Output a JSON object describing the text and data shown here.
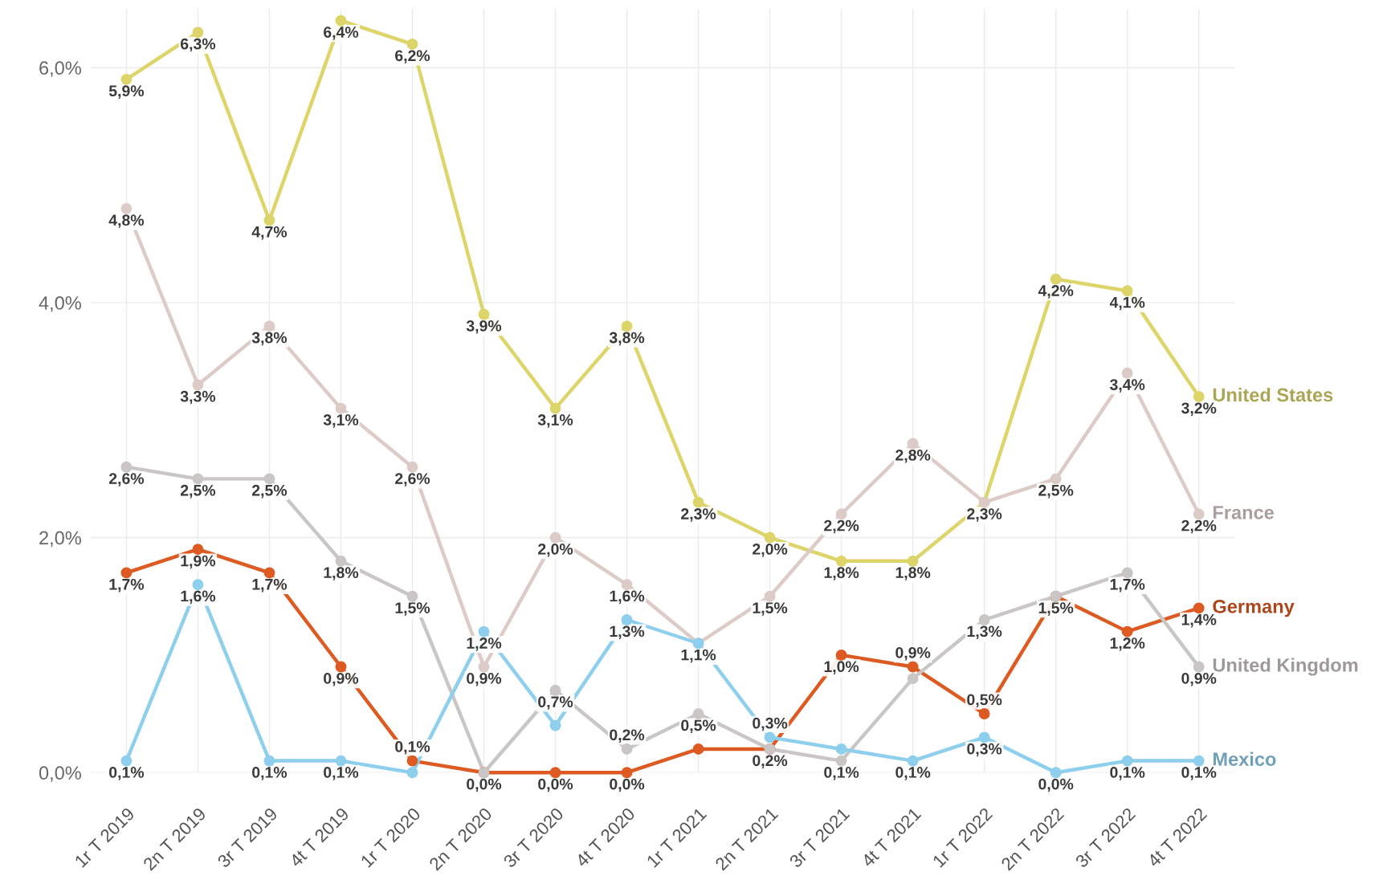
{
  "chart_data": {
    "type": "line",
    "categories": [
      "1r T 2019",
      "2n T 2019",
      "3r T 2019",
      "4t T 2019",
      "1r T 2020",
      "2n T 2020",
      "3r T 2020",
      "4t T 2020",
      "1r T 2021",
      "2n T 2021",
      "3r T 2021",
      "4t T 2021",
      "1r T 2022",
      "2n T 2022",
      "3r T 2022",
      "4t T 2022"
    ],
    "ylim": [
      0,
      6.5
    ],
    "yticks": [
      {
        "value": 0,
        "label": "0,0%"
      },
      {
        "value": 2,
        "label": "2,0%"
      },
      {
        "value": 4,
        "label": "4,0%"
      },
      {
        "value": 6,
        "label": "6,0%"
      }
    ],
    "grid": true,
    "legend": false,
    "marker": "circle",
    "line_style": "solid",
    "series": [
      {
        "name": "United States",
        "color": "#ddd46a",
        "values": [
          5.9,
          6.3,
          4.7,
          6.4,
          6.2,
          3.9,
          3.1,
          3.8,
          2.3,
          2.0,
          1.8,
          1.8,
          2.3,
          4.2,
          4.1,
          3.2
        ],
        "value_labels": [
          "5,9%",
          "6,3%",
          "4,7%",
          "6,4%",
          "6,2%",
          "3,9%",
          "3,1%",
          "3,8%",
          "2,3%",
          "2,0%",
          "1,8%",
          "1,8%",
          null,
          "4,2%",
          "4,1%",
          "3,2%"
        ]
      },
      {
        "name": "France",
        "color": "#dccbc6",
        "values": [
          4.8,
          3.3,
          3.8,
          3.1,
          2.6,
          0.9,
          2.0,
          1.6,
          1.1,
          1.5,
          2.2,
          2.8,
          2.3,
          2.5,
          3.4,
          2.2
        ],
        "value_labels": [
          "4,8%",
          "3,3%",
          "3,8%",
          "3,1%",
          "2,6%",
          "0,9%",
          "2,0%",
          "1,6%",
          null,
          "1,5%",
          "2,2%",
          "2,8%",
          "2,3%",
          "2,5%",
          "3,4%",
          "2,2%"
        ]
      },
      {
        "name": "Germany",
        "color": "#dd5b22",
        "values": [
          1.7,
          1.9,
          1.7,
          0.9,
          0.1,
          0.0,
          0.0,
          0.0,
          0.2,
          0.2,
          1.0,
          0.9,
          0.5,
          1.5,
          1.2,
          1.4
        ],
        "value_labels": [
          "1,7%",
          "1,9%",
          "1,7%",
          "0,9%",
          "0,1%",
          "0,0%",
          "0,0%",
          "0,0%",
          null,
          "0,2%",
          "1,0%",
          "0,9%",
          "0,5%",
          "1,5%",
          "1,2%",
          "1,4%"
        ]
      },
      {
        "name": "United Kingdom",
        "color": "#cac6c6",
        "values": [
          2.6,
          2.5,
          2.5,
          1.8,
          1.5,
          0.0,
          0.7,
          0.2,
          0.5,
          0.2,
          0.1,
          0.8,
          1.3,
          1.5,
          1.7,
          0.9
        ],
        "value_labels": [
          "2,6%",
          "2,5%",
          "2,5%",
          "1,8%",
          "1,5%",
          null,
          "0,7%",
          "0,2%",
          "0,5%",
          null,
          "0,1%",
          null,
          "1,3%",
          null,
          "1,7%",
          "0,9%"
        ]
      },
      {
        "name": "Mexico",
        "color": "#8dcfec",
        "values": [
          0.1,
          1.6,
          0.1,
          0.1,
          0.0,
          1.2,
          0.4,
          1.3,
          1.1,
          0.3,
          0.2,
          0.1,
          0.3,
          0.0,
          0.1,
          0.1
        ],
        "value_labels": [
          "0,1%",
          "1,6%",
          "0,1%",
          "0,1%",
          null,
          "1,2%",
          null,
          "1,3%",
          "1,1%",
          "0,3%",
          null,
          "0,1%",
          "0,3%",
          "0,0%",
          "0,1%",
          "0,1%"
        ]
      }
    ]
  }
}
